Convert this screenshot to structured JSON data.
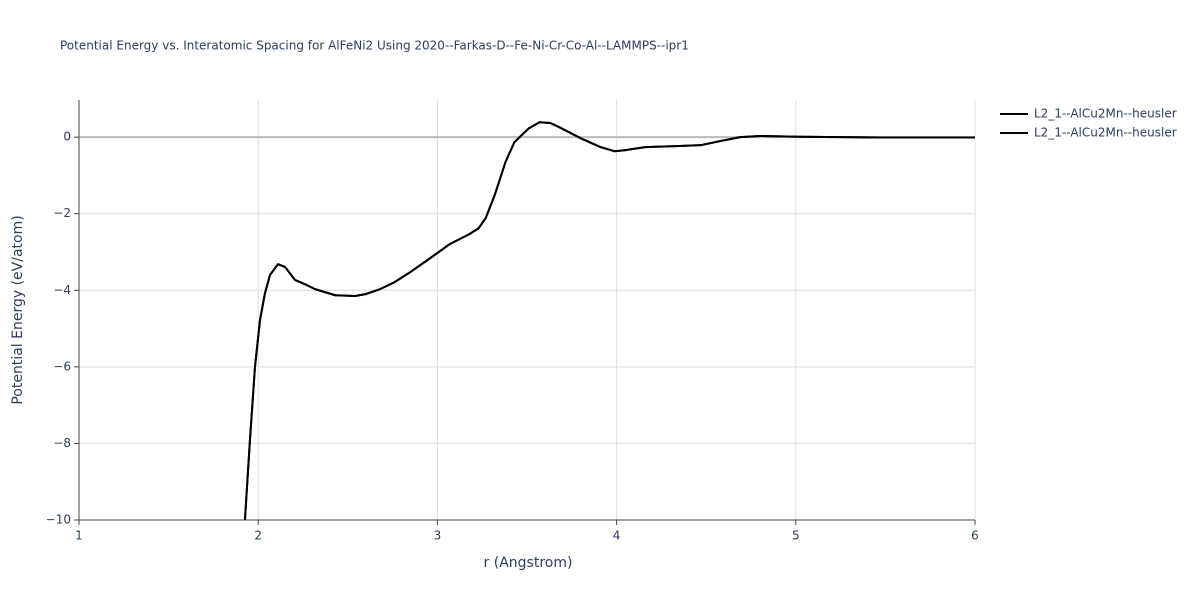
{
  "chart_data": {
    "type": "line",
    "title": "Potential Energy vs. Interatomic Spacing for AlFeNi2 Using 2020--Farkas-D--Fe-Ni-Cr-Co-Al--LAMMPS--ipr1",
    "x_label": "r (Angstrom)",
    "y_label": "Potential Energy (eV/atom)",
    "x": [
      1.926,
      1.954,
      1.982,
      2.01,
      2.038,
      2.066,
      2.11,
      2.15,
      2.205,
      2.26,
      2.317,
      2.43,
      2.54,
      2.6,
      2.68,
      2.76,
      2.85,
      2.96,
      3.07,
      3.18,
      3.23,
      3.27,
      3.32,
      3.38,
      3.43,
      3.51,
      3.57,
      3.63,
      3.68,
      3.8,
      3.91,
      3.99,
      4.05,
      4.16,
      4.35,
      4.47,
      4.58,
      4.69,
      4.8,
      5.02,
      5.47,
      6.0
    ],
    "series": [
      {
        "name": "L2_1--AlCu2Mn--heusler",
        "color": "#000000",
        "values": [
          -10,
          -7.91,
          -6.0,
          -4.78,
          -4.07,
          -3.6,
          -3.32,
          -3.39,
          -3.73,
          -3.84,
          -3.97,
          -4.13,
          -4.15,
          -4.1,
          -3.97,
          -3.79,
          -3.52,
          -3.16,
          -2.79,
          -2.53,
          -2.38,
          -2.11,
          -1.51,
          -0.65,
          -0.13,
          0.23,
          0.39,
          0.37,
          0.26,
          -0.03,
          -0.26,
          -0.37,
          -0.34,
          -0.26,
          -0.23,
          -0.21,
          -0.1,
          0,
          0.03,
          0.01,
          -0.01,
          -0.01
        ]
      },
      {
        "name": "L2_1--AlCu2Mn--heusler",
        "color": "#000000",
        "values": [
          -10,
          -7.91,
          -6.0,
          -4.78,
          -4.07,
          -3.6,
          -3.32,
          -3.39,
          -3.73,
          -3.84,
          -3.97,
          -4.13,
          -4.15,
          -4.1,
          -3.97,
          -3.79,
          -3.52,
          -3.16,
          -2.79,
          -2.53,
          -2.38,
          -2.11,
          -1.51,
          -0.65,
          -0.13,
          0.23,
          0.39,
          0.37,
          0.26,
          -0.03,
          -0.26,
          -0.37,
          -0.34,
          -0.26,
          -0.23,
          -0.21,
          -0.1,
          0,
          0.03,
          0.01,
          -0.01,
          -0.01
        ]
      }
    ],
    "xlim": [
      1,
      6
    ],
    "xticks": [
      1,
      2,
      3,
      4,
      5,
      6
    ],
    "ylim": [
      -10,
      0.97
    ],
    "yticks": [
      {
        "value": -10,
        "label": "−10"
      },
      {
        "value": -8,
        "label": "−8"
      },
      {
        "value": -6,
        "label": "−6"
      },
      {
        "value": -4,
        "label": "−4"
      },
      {
        "value": -2,
        "label": "−2"
      },
      0
    ],
    "grid": true
  }
}
